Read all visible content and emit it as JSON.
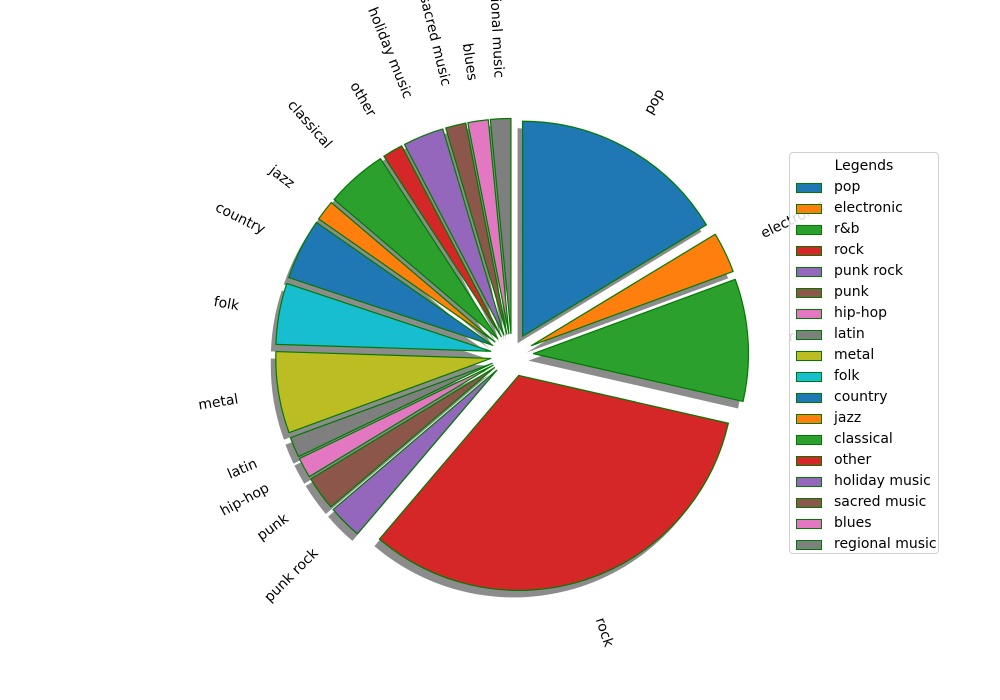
{
  "chart_data": {
    "type": "pie",
    "title": "",
    "legend_title": "Legends",
    "legend_position": "right",
    "edge_color": "#007a00",
    "shadow": true,
    "start_angle_deg": 90,
    "direction": "clockwise",
    "slices": [
      {
        "label": "pop",
        "value": 16.0,
        "color": "#1f77b4"
      },
      {
        "label": "electronic",
        "value": 3.0,
        "color": "#ff7f0e"
      },
      {
        "label": "r&b",
        "value": 9.0,
        "color": "#2ca02c"
      },
      {
        "label": "rock",
        "value": 32.0,
        "color": "#d62728"
      },
      {
        "label": "punk rock",
        "value": 2.5,
        "color": "#9467bd"
      },
      {
        "label": "punk",
        "value": 2.5,
        "color": "#8c564b"
      },
      {
        "label": "hip-hop",
        "value": 1.5,
        "color": "#e377c2"
      },
      {
        "label": "latin",
        "value": 1.5,
        "color": "#7f7f7f"
      },
      {
        "label": "metal",
        "value": 6.0,
        "color": "#bcbd22"
      },
      {
        "label": "folk",
        "value": 4.5,
        "color": "#17becf"
      },
      {
        "label": "country",
        "value": 4.5,
        "color": "#1f77b4"
      },
      {
        "label": "jazz",
        "value": 1.5,
        "color": "#ff7f0e"
      },
      {
        "label": "classical",
        "value": 4.5,
        "color": "#2ca02c"
      },
      {
        "label": "other",
        "value": 1.5,
        "color": "#d62728"
      },
      {
        "label": "holiday music",
        "value": 3.0,
        "color": "#9467bd"
      },
      {
        "label": "sacred music",
        "value": 1.5,
        "color": "#8c564b"
      },
      {
        "label": "blues",
        "value": 1.5,
        "color": "#e377c2"
      },
      {
        "label": "regional music",
        "value": 1.5,
        "color": "#7f7f7f"
      }
    ]
  }
}
